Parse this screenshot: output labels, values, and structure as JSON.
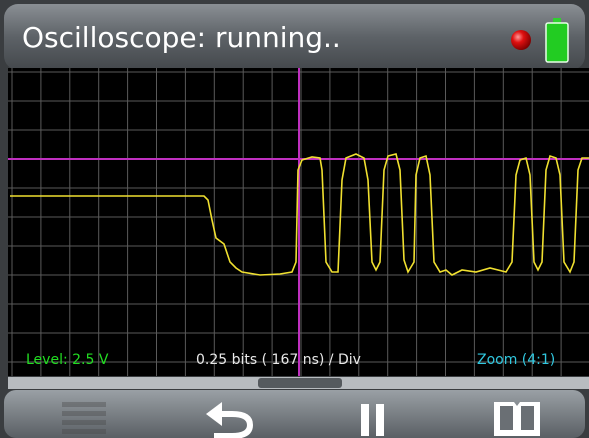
{
  "header": {
    "title": "Oscilloscope: running.."
  },
  "status": {
    "level": "Level:  2.5 V",
    "timebase": "0.25 bits ( 167 ns) / Div",
    "zoom": "Zoom (4:1)"
  }
}
